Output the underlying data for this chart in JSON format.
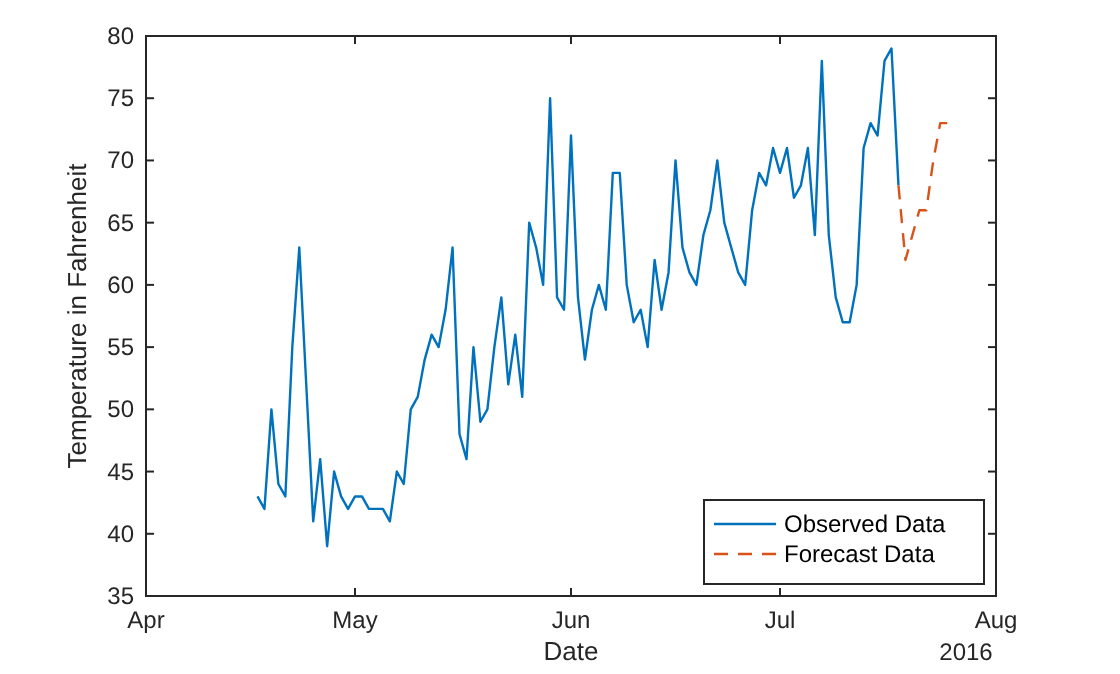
{
  "chart_data": {
    "type": "line",
    "xlabel": "Date",
    "ylabel": "Temperature in Fahrenheit",
    "annotations": [
      "2016"
    ],
    "xlim": [
      "2016-04-01",
      "2016-08-01"
    ],
    "xticks": [
      {
        "value": "2016-04-01",
        "label": "Apr"
      },
      {
        "value": "2016-05-01",
        "label": "May"
      },
      {
        "value": "2016-06-01",
        "label": "Jun"
      },
      {
        "value": "2016-07-01",
        "label": "Jul"
      },
      {
        "value": "2016-08-01",
        "label": "Aug"
      }
    ],
    "ylim": [
      35,
      80
    ],
    "yticks": [
      35,
      40,
      45,
      50,
      55,
      60,
      65,
      70,
      75,
      80
    ],
    "grid": false,
    "legend": "bottom right",
    "series": [
      {
        "name": "Observed Data",
        "color": "#0072bd",
        "line_style": "solid",
        "x": [
          "2016-04-17",
          "2016-04-18",
          "2016-04-19",
          "2016-04-20",
          "2016-04-21",
          "2016-04-22",
          "2016-04-23",
          "2016-04-24",
          "2016-04-25",
          "2016-04-26",
          "2016-04-27",
          "2016-04-28",
          "2016-04-29",
          "2016-04-30",
          "2016-05-01",
          "2016-05-02",
          "2016-05-03",
          "2016-05-04",
          "2016-05-05",
          "2016-05-06",
          "2016-05-07",
          "2016-05-08",
          "2016-05-09",
          "2016-05-10",
          "2016-05-11",
          "2016-05-12",
          "2016-05-13",
          "2016-05-14",
          "2016-05-15",
          "2016-05-16",
          "2016-05-17",
          "2016-05-18",
          "2016-05-19",
          "2016-05-20",
          "2016-05-21",
          "2016-05-22",
          "2016-05-23",
          "2016-05-24",
          "2016-05-25",
          "2016-05-26",
          "2016-05-27",
          "2016-05-28",
          "2016-05-29",
          "2016-05-30",
          "2016-05-31",
          "2016-06-01",
          "2016-06-02",
          "2016-06-03",
          "2016-06-04",
          "2016-06-05",
          "2016-06-06",
          "2016-06-07",
          "2016-06-08",
          "2016-06-09",
          "2016-06-10",
          "2016-06-11",
          "2016-06-12",
          "2016-06-13",
          "2016-06-14",
          "2016-06-15",
          "2016-06-16",
          "2016-06-17",
          "2016-06-18",
          "2016-06-19",
          "2016-06-20",
          "2016-06-21",
          "2016-06-22",
          "2016-06-23",
          "2016-06-24",
          "2016-06-25",
          "2016-06-26",
          "2016-06-27",
          "2016-06-28",
          "2016-06-29",
          "2016-06-30",
          "2016-07-01",
          "2016-07-02",
          "2016-07-03",
          "2016-07-04",
          "2016-07-05",
          "2016-07-06",
          "2016-07-07",
          "2016-07-08",
          "2016-07-09",
          "2016-07-10",
          "2016-07-11",
          "2016-07-12",
          "2016-07-13",
          "2016-07-14",
          "2016-07-15",
          "2016-07-16",
          "2016-07-17",
          "2016-07-18"
        ],
        "values": [
          43,
          42,
          50,
          44,
          43,
          55,
          63,
          52,
          41,
          46,
          39,
          45,
          43,
          42,
          43,
          43,
          42,
          42,
          42,
          41,
          45,
          44,
          50,
          51,
          54,
          56,
          55,
          58,
          63,
          48,
          46,
          55,
          49,
          50,
          55,
          59,
          52,
          56,
          51,
          65,
          63,
          60,
          75,
          59,
          58,
          72,
          59,
          54,
          58,
          60,
          58,
          69,
          69,
          60,
          57,
          58,
          55,
          62,
          58,
          61,
          70,
          63,
          61,
          60,
          64,
          66,
          70,
          65,
          63,
          61,
          60,
          66,
          69,
          68,
          71,
          69,
          71,
          67,
          68,
          71,
          64,
          78,
          64,
          59,
          57,
          57,
          60,
          71,
          73,
          72,
          78,
          79,
          68
        ]
      },
      {
        "name": "Forecast Data",
        "color": "#d95319",
        "line_style": "dashed",
        "x": [
          "2016-07-18",
          "2016-07-19",
          "2016-07-20",
          "2016-07-21",
          "2016-07-22",
          "2016-07-23",
          "2016-07-24",
          "2016-07-25"
        ],
        "values": [
          68,
          62,
          64,
          66,
          66,
          70,
          73,
          73
        ]
      }
    ]
  }
}
